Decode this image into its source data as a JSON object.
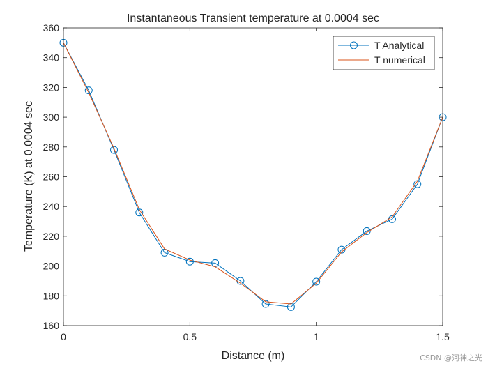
{
  "chart_data": {
    "type": "line",
    "title": "Instantaneous Transient temperature at 0.0004 sec",
    "xlabel": "Distance (m)",
    "ylabel": "Temperature (K) at 0.0004 sec",
    "xlim": [
      0,
      1.5
    ],
    "ylim": [
      160,
      360
    ],
    "x_ticks": [
      0,
      0.5,
      1,
      1.5
    ],
    "x_tick_labels": [
      "0",
      "0.5",
      "1",
      "1.5"
    ],
    "y_ticks": [
      160,
      180,
      200,
      220,
      240,
      260,
      280,
      300,
      320,
      340,
      360
    ],
    "y_tick_labels": [
      "160",
      "180",
      "200",
      "220",
      "240",
      "260",
      "280",
      "300",
      "320",
      "340",
      "360"
    ],
    "legend_position": "top-right",
    "x": [
      0,
      0.1,
      0.2,
      0.3,
      0.4,
      0.5,
      0.6,
      0.7,
      0.8,
      0.9,
      1.0,
      1.1,
      1.2,
      1.3,
      1.4,
      1.5
    ],
    "series": [
      {
        "name": "T Analytical",
        "color": "#0072BD",
        "marker": "circle",
        "values": [
          350,
          318,
          278,
          236,
          209,
          203,
          202,
          190,
          174.5,
          172.5,
          189.5,
          211,
          223.5,
          231.5,
          255,
          300
        ]
      },
      {
        "name": "T numerical",
        "color": "#D95319",
        "marker": "none",
        "values": [
          350,
          316.5,
          279,
          238,
          211.5,
          204,
          199.5,
          188.5,
          176,
          174.5,
          188.5,
          209.5,
          222.5,
          233,
          257,
          300
        ]
      }
    ]
  },
  "watermark": "CSDN @河神之光"
}
